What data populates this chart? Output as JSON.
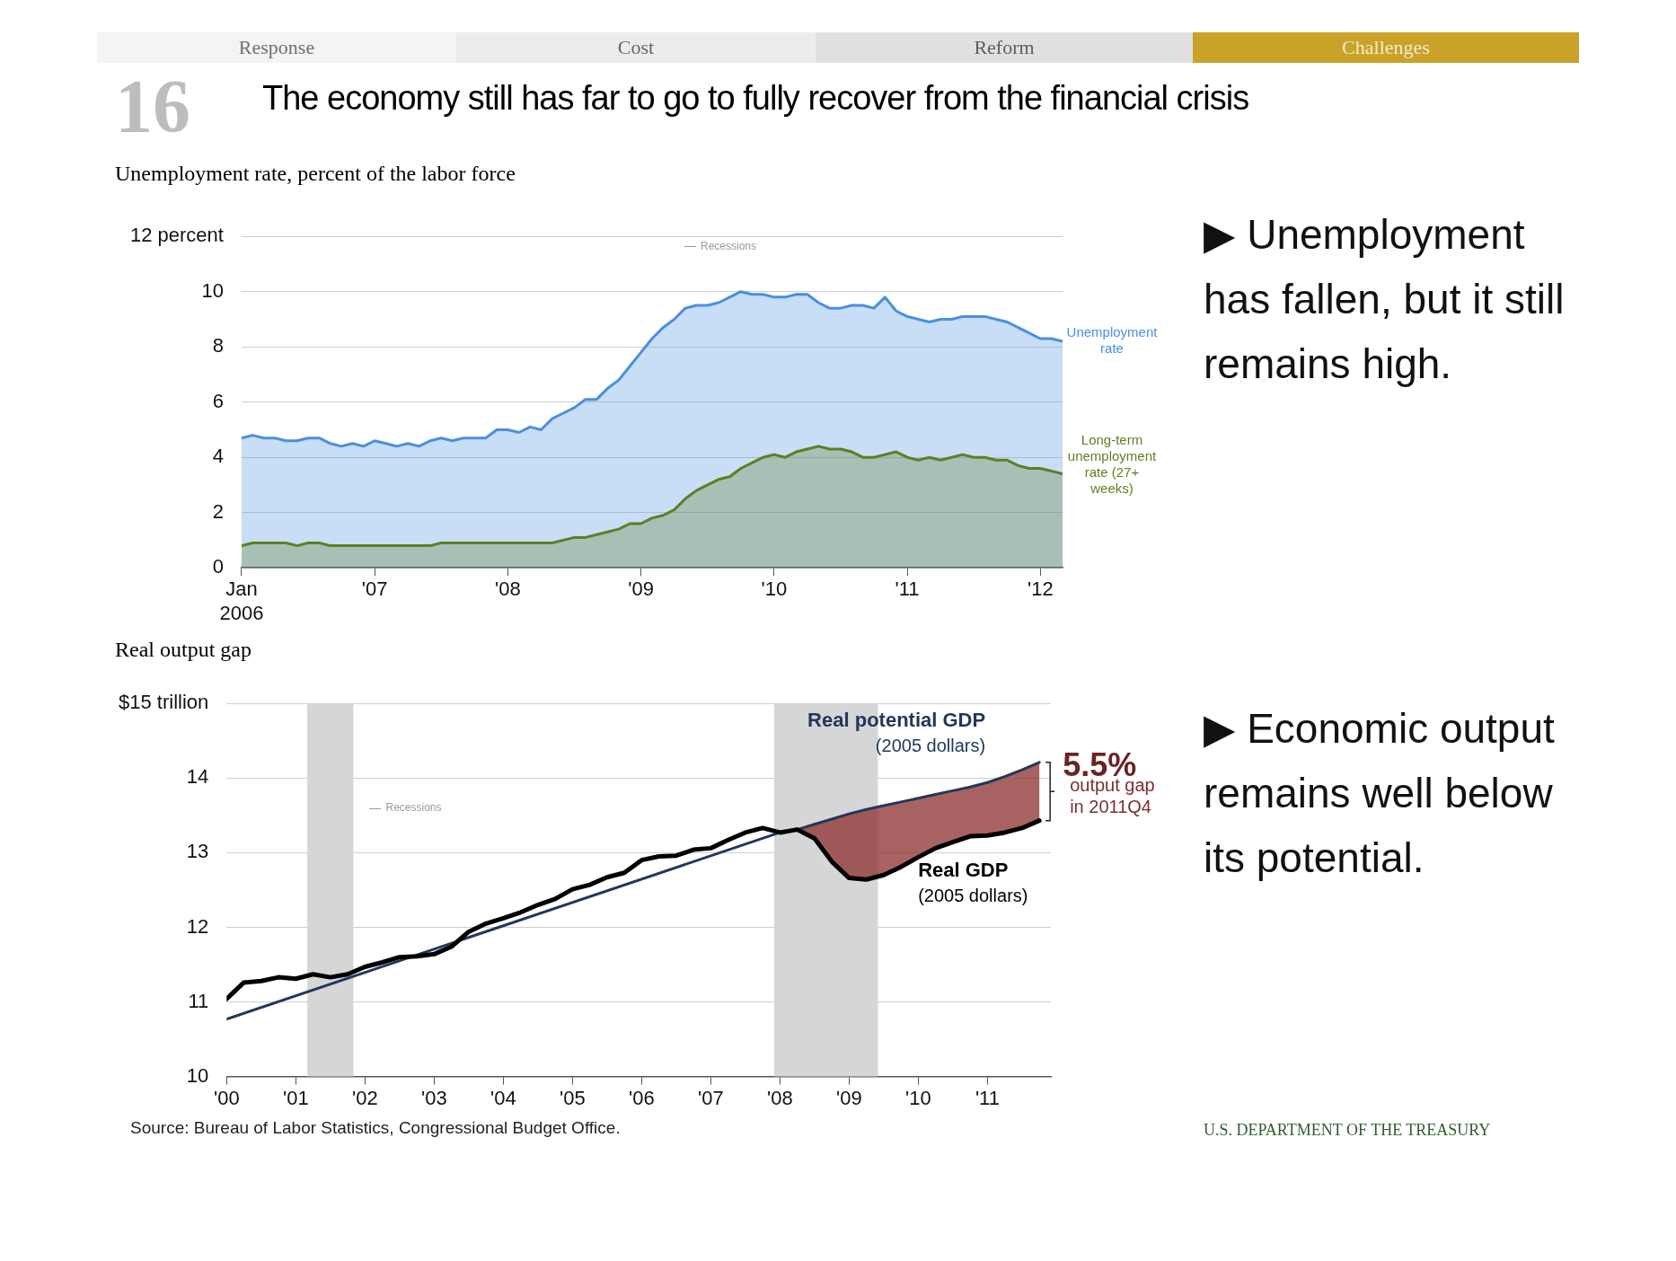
{
  "chart_data": [
    {
      "type": "area",
      "title": "The economy still has far to go to fully recover from the financial crisis",
      "subtitle": "Unemployment rate, percent of the labor force",
      "x": [
        "2006-01",
        "2006-02",
        "2006-03",
        "2006-04",
        "2006-05",
        "2006-06",
        "2006-07",
        "2006-08",
        "2006-09",
        "2006-10",
        "2006-11",
        "2006-12",
        "2007-01",
        "2007-02",
        "2007-03",
        "2007-04",
        "2007-05",
        "2007-06",
        "2007-07",
        "2007-08",
        "2007-09",
        "2007-10",
        "2007-11",
        "2007-12",
        "2008-01",
        "2008-02",
        "2008-03",
        "2008-04",
        "2008-05",
        "2008-06",
        "2008-07",
        "2008-08",
        "2008-09",
        "2008-10",
        "2008-11",
        "2008-12",
        "2009-01",
        "2009-02",
        "2009-03",
        "2009-04",
        "2009-05",
        "2009-06",
        "2009-07",
        "2009-08",
        "2009-09",
        "2009-10",
        "2009-11",
        "2009-12",
        "2010-01",
        "2010-02",
        "2010-03",
        "2010-04",
        "2010-05",
        "2010-06",
        "2010-07",
        "2010-08",
        "2010-09",
        "2010-10",
        "2010-11",
        "2010-12",
        "2011-01",
        "2011-02",
        "2011-03",
        "2011-04",
        "2011-05",
        "2011-06",
        "2011-07",
        "2011-08",
        "2011-09",
        "2011-10",
        "2011-11",
        "2011-12",
        "2012-01",
        "2012-02",
        "2012-03"
      ],
      "series": [
        {
          "name": "Unemployment rate",
          "color": "#4a8fe0",
          "values": [
            4.7,
            4.8,
            4.7,
            4.7,
            4.6,
            4.6,
            4.7,
            4.7,
            4.5,
            4.4,
            4.5,
            4.4,
            4.6,
            4.5,
            4.4,
            4.5,
            4.4,
            4.6,
            4.7,
            4.6,
            4.7,
            4.7,
            4.7,
            5.0,
            5.0,
            4.9,
            5.1,
            5.0,
            5.4,
            5.6,
            5.8,
            6.1,
            6.1,
            6.5,
            6.8,
            7.3,
            7.8,
            8.3,
            8.7,
            9.0,
            9.4,
            9.5,
            9.5,
            9.6,
            9.8,
            10.0,
            9.9,
            9.9,
            9.8,
            9.8,
            9.9,
            9.9,
            9.6,
            9.4,
            9.4,
            9.5,
            9.5,
            9.4,
            9.8,
            9.3,
            9.1,
            9.0,
            8.9,
            9.0,
            9.0,
            9.1,
            9.1,
            9.1,
            9.0,
            8.9,
            8.7,
            8.5,
            8.3,
            8.3,
            8.2
          ]
        },
        {
          "name": "Long-term unemployment rate (27+ weeks)",
          "color": "#5e7f22",
          "values": [
            0.8,
            0.9,
            0.9,
            0.9,
            0.9,
            0.8,
            0.9,
            0.9,
            0.8,
            0.8,
            0.8,
            0.8,
            0.8,
            0.8,
            0.8,
            0.8,
            0.8,
            0.8,
            0.9,
            0.9,
            0.9,
            0.9,
            0.9,
            0.9,
            0.9,
            0.9,
            0.9,
            0.9,
            0.9,
            1.0,
            1.1,
            1.1,
            1.2,
            1.3,
            1.4,
            1.6,
            1.6,
            1.8,
            1.9,
            2.1,
            2.5,
            2.8,
            3.0,
            3.2,
            3.3,
            3.6,
            3.8,
            4.0,
            4.1,
            4.0,
            4.2,
            4.3,
            4.4,
            4.3,
            4.3,
            4.2,
            4.0,
            4.0,
            4.1,
            4.2,
            4.0,
            3.9,
            4.0,
            3.9,
            4.0,
            4.1,
            4.0,
            4.0,
            3.9,
            3.9,
            3.7,
            3.6,
            3.6,
            3.5,
            3.4
          ]
        }
      ],
      "xlim": [
        "2006-01",
        "2012-03"
      ],
      "xticks": [
        {
          "value": "2006-01",
          "label": "Jan\n2006"
        },
        {
          "value": "2007-01",
          "label": "'07"
        },
        {
          "value": "2008-01",
          "label": "'08"
        },
        {
          "value": "2009-01",
          "label": "'09"
        },
        {
          "value": "2010-01",
          "label": "'10"
        },
        {
          "value": "2011-01",
          "label": "'11"
        },
        {
          "value": "2012-01",
          "label": "'12"
        }
      ],
      "ylim": [
        0,
        12
      ],
      "yticks": [
        0,
        2,
        4,
        6,
        8,
        10,
        {
          "value": 12,
          "label": "12 percent"
        }
      ],
      "grid": "y",
      "legend": false,
      "annotations": [
        "Response",
        "Cost",
        "Reform",
        "Challenges",
        "16",
        "Recessions",
        "▶ Unemployment has fallen, but it still remains high."
      ]
    },
    {
      "type": "line",
      "title": "Real output gap",
      "x": [
        "2000-01",
        "2000-04",
        "2000-07",
        "2000-10",
        "2001-01",
        "2001-04",
        "2001-07",
        "2001-10",
        "2002-01",
        "2002-04",
        "2002-07",
        "2002-10",
        "2003-01",
        "2003-04",
        "2003-07",
        "2003-10",
        "2004-01",
        "2004-04",
        "2004-07",
        "2004-10",
        "2005-01",
        "2005-04",
        "2005-07",
        "2005-10",
        "2006-01",
        "2006-04",
        "2006-07",
        "2006-10",
        "2007-01",
        "2007-04",
        "2007-07",
        "2007-10",
        "2008-01",
        "2008-04",
        "2008-07",
        "2008-10",
        "2009-01",
        "2009-04",
        "2009-07",
        "2009-10",
        "2010-01",
        "2010-04",
        "2010-07",
        "2010-10",
        "2011-01",
        "2011-04",
        "2011-07",
        "2011-10"
      ],
      "series": [
        {
          "name": "Real potential GDP (2005 dollars)",
          "color": "#22385a",
          "x": [
            "2000-01",
            "2004-01",
            "2008-01",
            "2008-04",
            "2008-07",
            "2008-10",
            "2009-01",
            "2009-04",
            "2009-07",
            "2009-10",
            "2010-01",
            "2010-04",
            "2010-07",
            "2010-10",
            "2011-01",
            "2011-04",
            "2011-07",
            "2011-10"
          ],
          "values": [
            10.77,
            12.02,
            13.27,
            13.31,
            13.38,
            13.45,
            13.52,
            13.58,
            13.63,
            13.68,
            13.73,
            13.78,
            13.83,
            13.88,
            13.94,
            14.02,
            14.11,
            14.21
          ]
        },
        {
          "name": "Real GDP (2005 dollars)",
          "color": "#000000",
          "values": [
            11.04,
            11.26,
            11.28,
            11.33,
            11.31,
            11.37,
            11.33,
            11.37,
            11.47,
            11.53,
            11.6,
            11.61,
            11.64,
            11.74,
            11.94,
            12.05,
            12.12,
            12.2,
            12.3,
            12.38,
            12.51,
            12.57,
            12.67,
            12.73,
            12.9,
            12.95,
            12.96,
            13.04,
            13.06,
            13.17,
            13.27,
            13.33,
            13.27,
            13.31,
            13.19,
            12.88,
            12.66,
            12.64,
            12.7,
            12.81,
            12.94,
            13.06,
            13.14,
            13.22,
            13.23,
            13.27,
            13.33,
            13.43
          ],
          "upper": [
            null,
            null,
            null,
            null,
            null,
            null,
            null,
            null,
            null,
            null,
            null,
            null,
            null,
            null,
            null,
            null,
            null,
            null,
            null,
            null,
            null,
            null,
            null,
            null,
            null,
            null,
            null,
            null,
            null,
            null,
            null,
            null,
            null,
            13.31,
            13.38,
            13.45,
            13.52,
            13.58,
            13.63,
            13.68,
            13.73,
            13.78,
            13.83,
            13.88,
            13.94,
            14.02,
            14.11,
            14.21
          ],
          "lower": [
            null,
            null,
            null,
            null,
            null,
            null,
            null,
            null,
            null,
            null,
            null,
            null,
            null,
            null,
            null,
            null,
            null,
            null,
            null,
            null,
            null,
            null,
            null,
            null,
            null,
            null,
            null,
            null,
            null,
            null,
            null,
            null,
            null,
            13.31,
            13.19,
            12.88,
            12.66,
            12.64,
            12.7,
            12.81,
            12.94,
            13.06,
            13.14,
            13.22,
            13.23,
            13.27,
            13.33,
            13.43
          ]
        }
      ],
      "xlim": [
        "2000-01",
        "2011-12"
      ],
      "xticks": [
        {
          "value": "2000-01",
          "label": "'00"
        },
        {
          "value": "2001-01",
          "label": "'01"
        },
        {
          "value": "2002-01",
          "label": "'02"
        },
        {
          "value": "2003-01",
          "label": "'03"
        },
        {
          "value": "2004-01",
          "label": "'04"
        },
        {
          "value": "2005-01",
          "label": "'05"
        },
        {
          "value": "2006-01",
          "label": "'06"
        },
        {
          "value": "2007-01",
          "label": "'07"
        },
        {
          "value": "2008-01",
          "label": "'08"
        },
        {
          "value": "2009-01",
          "label": "'09"
        },
        {
          "value": "2010-01",
          "label": "'10"
        },
        {
          "value": "2011-01",
          "label": "'11"
        }
      ],
      "ylim": [
        10,
        15
      ],
      "yticks": [
        10,
        11,
        12,
        13,
        14,
        {
          "value": 15,
          "label": "$15 trillion"
        }
      ],
      "grid": "y",
      "legend": false,
      "bands": [
        {
          "axis": "x",
          "from": "2001-03",
          "to": "2001-11",
          "label": "Recessions",
          "color": "#d6d6d6"
        },
        {
          "axis": "x",
          "from": "2007-12",
          "to": "2009-06",
          "color": "#d6d6d6"
        }
      ],
      "annotations": [
        {
          "text": "5.5%",
          "x": "2011-10",
          "y": 14.15
        },
        {
          "text": "output gap in 2011Q4",
          "x": "2011-10",
          "y": 13.75
        },
        "▶ Economic output remains well below its potential.",
        "Source: Bureau of Labor Statistics, Congressional Budget Office.",
        "U.S. DEPARTMENT OF THE TREASURY"
      ]
    }
  ]
}
